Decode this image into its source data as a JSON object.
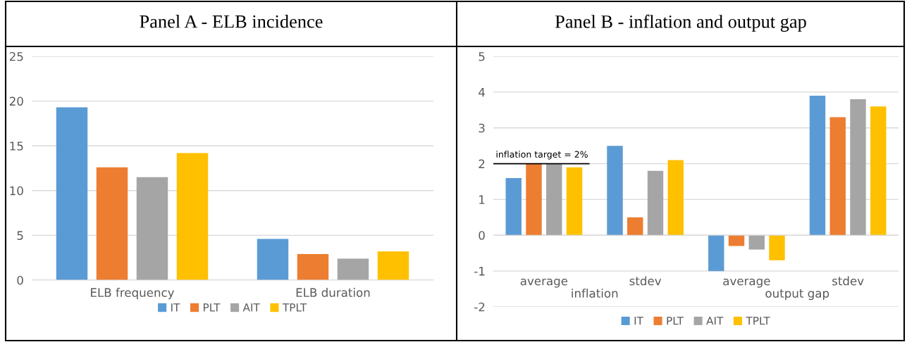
{
  "chart_data": [
    {
      "type": "bar",
      "title": "Panel A - ELB incidence",
      "categories": [
        "ELB frequency",
        "ELB duration"
      ],
      "series": [
        {
          "name": "IT",
          "color": "#5b9bd5",
          "values": [
            19.3,
            4.6
          ]
        },
        {
          "name": "PLT",
          "color": "#ed7d31",
          "values": [
            12.6,
            2.9
          ]
        },
        {
          "name": "AIT",
          "color": "#a5a5a5",
          "values": [
            11.5,
            2.4
          ]
        },
        {
          "name": "TPLT",
          "color": "#ffc000",
          "values": [
            14.2,
            3.2
          ]
        }
      ],
      "ylim": [
        0,
        25
      ],
      "yticks": [
        0,
        5,
        10,
        15,
        20,
        25
      ],
      "grid": "y",
      "legend": "bottom"
    },
    {
      "type": "bar",
      "title": "Panel B - inflation and output gap",
      "categories": [
        "average",
        "stdev",
        "average",
        "stdev"
      ],
      "series": [
        {
          "name": "IT",
          "color": "#5b9bd5",
          "values": [
            1.6,
            2.5,
            -1.0,
            3.9
          ]
        },
        {
          "name": "PLT",
          "color": "#ed7d31",
          "values": [
            2.0,
            0.5,
            -0.3,
            3.3
          ]
        },
        {
          "name": "AIT",
          "color": "#a5a5a5",
          "values": [
            2.0,
            1.8,
            -0.4,
            3.8
          ]
        },
        {
          "name": "TPLT",
          "color": "#ffc000",
          "values": [
            1.9,
            2.1,
            -0.7,
            3.6
          ]
        }
      ],
      "annotations": [
        "inflation",
        "output gap"
      ],
      "ref_lines": [
        {
          "axis": "y",
          "value": 2,
          "label": "inflation target = 2%",
          "color": "#000000"
        }
      ],
      "ylim": [
        -2,
        5
      ],
      "yticks": [
        -2,
        -1,
        0,
        1,
        2,
        3,
        4,
        5
      ],
      "grid": "y",
      "legend": "bottom"
    }
  ]
}
